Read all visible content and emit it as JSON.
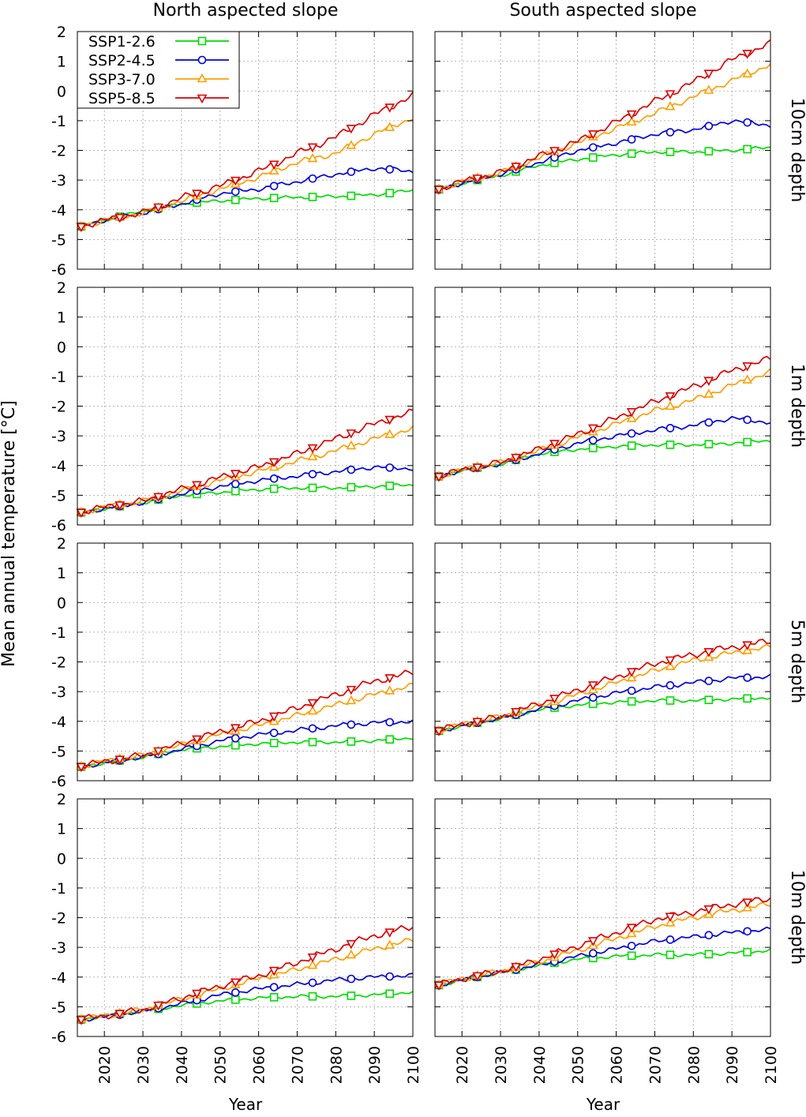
{
  "figure": {
    "column_titles": [
      "North aspected slope",
      "South aspected slope"
    ],
    "row_titles": [
      "10cm depth",
      "1m depth",
      "5m depth",
      "10m depth"
    ],
    "ylabel": "Mean annual temperature [°C]",
    "xlabel": "Year",
    "legend_location": "top-left of first panel"
  },
  "chart_data": {
    "type": "line",
    "layout": "4 rows x 2 columns small multiples",
    "xlim": [
      2013,
      2100
    ],
    "ylim": [
      -6,
      2
    ],
    "xticks": [
      2020,
      2030,
      2040,
      2050,
      2060,
      2070,
      2080,
      2090,
      2100
    ],
    "yticks": [
      2,
      1,
      0,
      -1,
      -2,
      -3,
      -4,
      -5,
      -6
    ],
    "grid": true,
    "x_marker_years": [
      2014,
      2024,
      2034,
      2044,
      2054,
      2064,
      2074,
      2084,
      2094
    ],
    "series_meta": [
      {
        "name": "SSP1-2.6",
        "color": "#00dd00",
        "marker": "square"
      },
      {
        "name": "SSP2-4.5",
        "color": "#0000dd",
        "marker": "circle"
      },
      {
        "name": "SSP3-7.0",
        "color": "#ff9f00",
        "marker": "triangle-up"
      },
      {
        "name": "SSP5-8.5",
        "color": "#dd0000",
        "marker": "triangle-down"
      }
    ],
    "panels": [
      {
        "slope": "North aspected slope",
        "depth": "10cm depth",
        "series": [
          {
            "name": "SSP1-2.6",
            "x": [
              2013,
              2020,
              2030,
              2040,
              2050,
              2060,
              2070,
              2080,
              2090,
              2100
            ],
            "y": [
              -4.6,
              -4.35,
              -4.05,
              -3.8,
              -3.7,
              -3.62,
              -3.58,
              -3.55,
              -3.5,
              -3.35
            ]
          },
          {
            "name": "SSP2-4.5",
            "x": [
              2013,
              2020,
              2030,
              2040,
              2050,
              2060,
              2070,
              2080,
              2090,
              2100
            ],
            "y": [
              -4.6,
              -4.35,
              -4.1,
              -3.8,
              -3.45,
              -3.3,
              -3.05,
              -2.8,
              -2.6,
              -2.7
            ]
          },
          {
            "name": "SSP3-7.0",
            "x": [
              2013,
              2020,
              2030,
              2040,
              2050,
              2060,
              2070,
              2080,
              2090,
              2100
            ],
            "y": [
              -4.6,
              -4.35,
              -4.1,
              -3.7,
              -3.3,
              -2.9,
              -2.4,
              -2.1,
              -1.45,
              -0.9
            ]
          },
          {
            "name": "SSP5-8.5",
            "x": [
              2013,
              2020,
              2030,
              2040,
              2050,
              2060,
              2070,
              2080,
              2090,
              2100
            ],
            "y": [
              -4.6,
              -4.35,
              -4.1,
              -3.6,
              -3.2,
              -2.7,
              -2.1,
              -1.55,
              -0.8,
              -0.15
            ]
          }
        ]
      },
      {
        "slope": "South aspected slope",
        "depth": "10cm depth",
        "series": [
          {
            "name": "SSP1-2.6",
            "x": [
              2013,
              2020,
              2030,
              2040,
              2050,
              2060,
              2070,
              2080,
              2090,
              2100
            ],
            "y": [
              -3.35,
              -3.1,
              -2.85,
              -2.5,
              -2.3,
              -2.15,
              -2.05,
              -2.05,
              -2.0,
              -1.9
            ]
          },
          {
            "name": "SSP2-4.5",
            "x": [
              2013,
              2020,
              2030,
              2040,
              2050,
              2060,
              2070,
              2080,
              2090,
              2100
            ],
            "y": [
              -3.35,
              -3.1,
              -2.8,
              -2.4,
              -2.0,
              -1.75,
              -1.45,
              -1.3,
              -1.0,
              -1.15
            ]
          },
          {
            "name": "SSP3-7.0",
            "x": [
              2013,
              2020,
              2030,
              2040,
              2050,
              2060,
              2070,
              2080,
              2090,
              2100
            ],
            "y": [
              -3.35,
              -3.05,
              -2.75,
              -2.25,
              -1.75,
              -1.25,
              -0.75,
              -0.2,
              0.35,
              0.9
            ]
          },
          {
            "name": "SSP5-8.5",
            "x": [
              2013,
              2020,
              2030,
              2040,
              2050,
              2060,
              2070,
              2080,
              2090,
              2100
            ],
            "y": [
              -3.35,
              -3.05,
              -2.75,
              -2.2,
              -1.7,
              -1.05,
              -0.35,
              0.3,
              1.05,
              1.6
            ]
          }
        ]
      },
      {
        "slope": "North aspected slope",
        "depth": "1m depth",
        "series": [
          {
            "name": "SSP1-2.6",
            "x": [
              2013,
              2020,
              2030,
              2040,
              2050,
              2060,
              2070,
              2080,
              2090,
              2100
            ],
            "y": [
              -5.6,
              -5.45,
              -5.25,
              -5.0,
              -4.9,
              -4.8,
              -4.75,
              -4.75,
              -4.7,
              -4.65
            ]
          },
          {
            "name": "SSP2-4.5",
            "x": [
              2013,
              2020,
              2030,
              2040,
              2050,
              2060,
              2070,
              2080,
              2090,
              2100
            ],
            "y": [
              -5.6,
              -5.45,
              -5.25,
              -4.95,
              -4.7,
              -4.5,
              -4.35,
              -4.2,
              -4.05,
              -4.1
            ]
          },
          {
            "name": "SSP3-7.0",
            "x": [
              2013,
              2020,
              2030,
              2040,
              2050,
              2060,
              2070,
              2080,
              2090,
              2100
            ],
            "y": [
              -5.6,
              -5.4,
              -5.2,
              -4.85,
              -4.5,
              -4.2,
              -3.85,
              -3.5,
              -3.1,
              -2.75
            ]
          },
          {
            "name": "SSP5-8.5",
            "x": [
              2013,
              2020,
              2030,
              2040,
              2050,
              2060,
              2070,
              2080,
              2090,
              2100
            ],
            "y": [
              -5.6,
              -5.4,
              -5.2,
              -4.8,
              -4.4,
              -4.05,
              -3.6,
              -3.1,
              -2.6,
              -2.2
            ]
          }
        ]
      },
      {
        "slope": "South aspected slope",
        "depth": "1m depth",
        "series": [
          {
            "name": "SSP1-2.6",
            "x": [
              2013,
              2020,
              2030,
              2040,
              2050,
              2060,
              2070,
              2080,
              2090,
              2100
            ],
            "y": [
              -4.4,
              -4.15,
              -3.95,
              -3.6,
              -3.45,
              -3.35,
              -3.3,
              -3.3,
              -3.25,
              -3.15
            ]
          },
          {
            "name": "SSP2-4.5",
            "x": [
              2013,
              2020,
              2030,
              2040,
              2050,
              2060,
              2070,
              2080,
              2090,
              2100
            ],
            "y": [
              -4.4,
              -4.15,
              -3.95,
              -3.6,
              -3.25,
              -3.0,
              -2.8,
              -2.65,
              -2.4,
              -2.55
            ]
          },
          {
            "name": "SSP3-7.0",
            "x": [
              2013,
              2020,
              2030,
              2040,
              2050,
              2060,
              2070,
              2080,
              2090,
              2100
            ],
            "y": [
              -4.4,
              -4.15,
              -3.9,
              -3.5,
              -3.05,
              -2.6,
              -2.15,
              -1.8,
              -1.3,
              -0.85
            ]
          },
          {
            "name": "SSP5-8.5",
            "x": [
              2013,
              2020,
              2030,
              2040,
              2050,
              2060,
              2070,
              2080,
              2090,
              2100
            ],
            "y": [
              -4.4,
              -4.15,
              -3.9,
              -3.45,
              -2.95,
              -2.4,
              -1.85,
              -1.35,
              -0.8,
              -0.4
            ]
          }
        ]
      },
      {
        "slope": "North aspected slope",
        "depth": "5m depth",
        "series": [
          {
            "name": "SSP1-2.6",
            "x": [
              2013,
              2020,
              2030,
              2040,
              2050,
              2060,
              2070,
              2080,
              2090,
              2100
            ],
            "y": [
              -5.55,
              -5.4,
              -5.2,
              -4.95,
              -4.85,
              -4.75,
              -4.7,
              -4.7,
              -4.65,
              -4.55
            ]
          },
          {
            "name": "SSP2-4.5",
            "x": [
              2013,
              2020,
              2030,
              2040,
              2050,
              2060,
              2070,
              2080,
              2090,
              2100
            ],
            "y": [
              -5.55,
              -5.4,
              -5.2,
              -4.95,
              -4.65,
              -4.45,
              -4.3,
              -4.15,
              -4.05,
              -4.0
            ]
          },
          {
            "name": "SSP3-7.0",
            "x": [
              2013,
              2020,
              2030,
              2040,
              2050,
              2060,
              2070,
              2080,
              2090,
              2100
            ],
            "y": [
              -5.55,
              -5.35,
              -5.15,
              -4.8,
              -4.45,
              -4.15,
              -3.8,
              -3.45,
              -3.1,
              -2.8
            ]
          },
          {
            "name": "SSP5-8.5",
            "x": [
              2013,
              2020,
              2030,
              2040,
              2050,
              2060,
              2070,
              2080,
              2090,
              2100
            ],
            "y": [
              -5.55,
              -5.35,
              -5.15,
              -4.75,
              -4.35,
              -4.0,
              -3.55,
              -3.1,
              -2.65,
              -2.35
            ]
          }
        ]
      },
      {
        "slope": "South aspected slope",
        "depth": "5m depth",
        "series": [
          {
            "name": "SSP1-2.6",
            "x": [
              2013,
              2020,
              2030,
              2040,
              2050,
              2060,
              2070,
              2080,
              2090,
              2100
            ],
            "y": [
              -4.35,
              -4.15,
              -3.9,
              -3.6,
              -3.45,
              -3.35,
              -3.3,
              -3.3,
              -3.25,
              -3.2
            ]
          },
          {
            "name": "SSP2-4.5",
            "x": [
              2013,
              2020,
              2030,
              2040,
              2050,
              2060,
              2070,
              2080,
              2090,
              2100
            ],
            "y": [
              -4.35,
              -4.15,
              -3.9,
              -3.6,
              -3.3,
              -3.05,
              -2.85,
              -2.7,
              -2.55,
              -2.5
            ]
          },
          {
            "name": "SSP3-7.0",
            "x": [
              2013,
              2020,
              2030,
              2040,
              2050,
              2060,
              2070,
              2080,
              2090,
              2100
            ],
            "y": [
              -4.35,
              -4.1,
              -3.85,
              -3.5,
              -3.1,
              -2.7,
              -2.3,
              -1.95,
              -1.7,
              -1.5
            ]
          },
          {
            "name": "SSP5-8.5",
            "x": [
              2013,
              2020,
              2030,
              2040,
              2050,
              2060,
              2070,
              2080,
              2090,
              2100
            ],
            "y": [
              -4.35,
              -4.1,
              -3.85,
              -3.4,
              -2.95,
              -2.5,
              -2.05,
              -1.75,
              -1.5,
              -1.3
            ]
          }
        ]
      },
      {
        "slope": "North aspected slope",
        "depth": "10m depth",
        "series": [
          {
            "name": "SSP1-2.6",
            "x": [
              2013,
              2020,
              2030,
              2040,
              2050,
              2060,
              2070,
              2080,
              2090,
              2100
            ],
            "y": [
              -5.45,
              -5.3,
              -5.15,
              -4.95,
              -4.8,
              -4.7,
              -4.65,
              -4.65,
              -4.6,
              -4.5
            ]
          },
          {
            "name": "SSP2-4.5",
            "x": [
              2013,
              2020,
              2030,
              2040,
              2050,
              2060,
              2070,
              2080,
              2090,
              2100
            ],
            "y": [
              -5.45,
              -5.35,
              -5.15,
              -4.9,
              -4.6,
              -4.4,
              -4.25,
              -4.1,
              -4.0,
              -3.95
            ]
          },
          {
            "name": "SSP3-7.0",
            "x": [
              2013,
              2020,
              2030,
              2040,
              2050,
              2060,
              2070,
              2080,
              2090,
              2100
            ],
            "y": [
              -5.45,
              -5.3,
              -5.1,
              -4.75,
              -4.4,
              -4.05,
              -3.75,
              -3.4,
              -3.05,
              -2.75
            ]
          },
          {
            "name": "SSP5-8.5",
            "x": [
              2013,
              2020,
              2030,
              2040,
              2050,
              2060,
              2070,
              2080,
              2090,
              2100
            ],
            "y": [
              -5.45,
              -5.3,
              -5.1,
              -4.7,
              -4.3,
              -3.95,
              -3.5,
              -3.05,
              -2.6,
              -2.3
            ]
          }
        ]
      },
      {
        "slope": "South aspected slope",
        "depth": "10m depth",
        "series": [
          {
            "name": "SSP1-2.6",
            "x": [
              2013,
              2020,
              2030,
              2040,
              2050,
              2060,
              2070,
              2080,
              2090,
              2100
            ],
            "y": [
              -4.3,
              -4.1,
              -3.85,
              -3.6,
              -3.4,
              -3.3,
              -3.25,
              -3.25,
              -3.2,
              -3.1
            ]
          },
          {
            "name": "SSP2-4.5",
            "x": [
              2013,
              2020,
              2030,
              2040,
              2050,
              2060,
              2070,
              2080,
              2090,
              2100
            ],
            "y": [
              -4.3,
              -4.1,
              -3.85,
              -3.6,
              -3.3,
              -3.05,
              -2.8,
              -2.65,
              -2.5,
              -2.4
            ]
          },
          {
            "name": "SSP3-7.0",
            "x": [
              2013,
              2020,
              2030,
              2040,
              2050,
              2060,
              2070,
              2080,
              2090,
              2100
            ],
            "y": [
              -4.3,
              -4.05,
              -3.8,
              -3.5,
              -3.1,
              -2.7,
              -2.3,
              -2.0,
              -1.75,
              -1.55
            ]
          },
          {
            "name": "SSP5-8.5",
            "x": [
              2013,
              2020,
              2030,
              2040,
              2050,
              2060,
              2070,
              2080,
              2090,
              2100
            ],
            "y": [
              -4.3,
              -4.05,
              -3.8,
              -3.4,
              -2.95,
              -2.5,
              -2.05,
              -1.8,
              -1.55,
              -1.35
            ]
          }
        ]
      }
    ]
  }
}
